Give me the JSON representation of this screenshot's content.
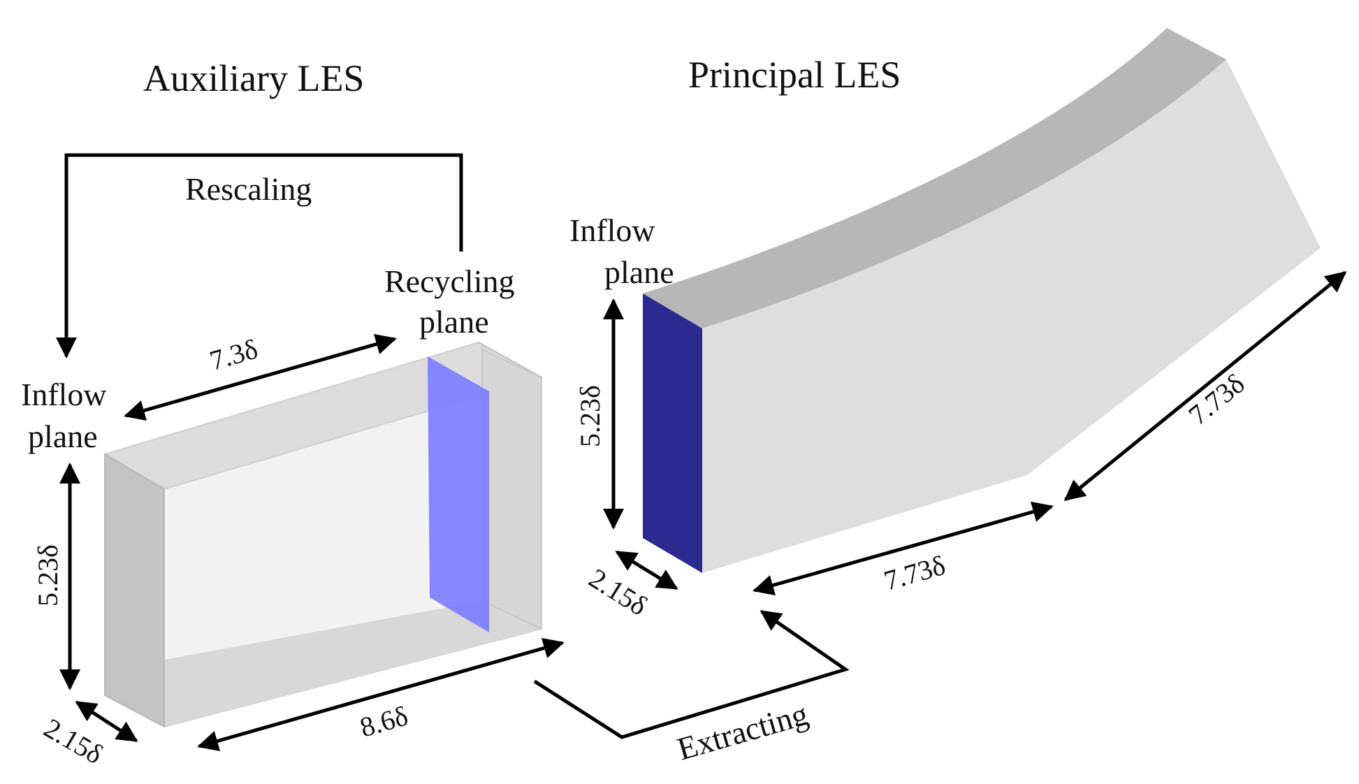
{
  "auxiliary": {
    "title": "Auxiliary LES",
    "rescaling_label": "Rescaling",
    "recycling_label_line1": "Recycling",
    "recycling_label_line2": "plane",
    "inflow_label_line1": "Inflow",
    "inflow_label_line2": "plane",
    "dim_length_top": "7.3δ",
    "dim_length_bottom": "8.6δ",
    "dim_height": "5.23δ",
    "dim_width": "2.15δ"
  },
  "principal": {
    "title": "Principal LES",
    "inflow_label_line1": "Inflow",
    "inflow_label_line2": "plane",
    "dim_height": "5.23δ",
    "dim_width": "2.15δ",
    "dim_length_first": "7.73δ",
    "dim_length_second": "7.73δ"
  },
  "extracting_label": "Extracting",
  "colors": {
    "recycling_plane": "#8080ff",
    "principal_inflow_plane": "#2a2a90",
    "box_face": "#e0e0e0",
    "box_side": "#bdbdbd",
    "arrow": "#000000"
  }
}
